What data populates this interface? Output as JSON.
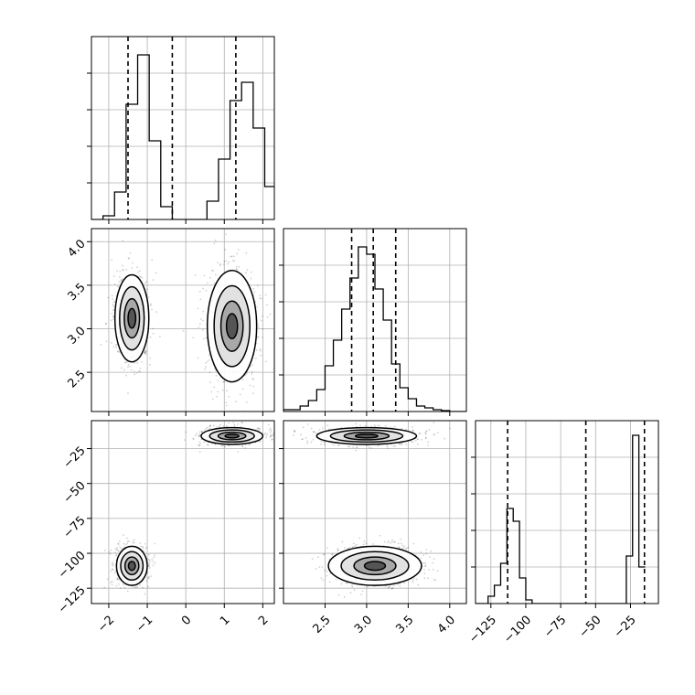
{
  "chart_data": [
    {
      "type": "histogram",
      "panel": "p0_0",
      "x_range": [
        -2.45,
        2.3
      ],
      "x_ticks": [
        -2,
        -1,
        0,
        1,
        2
      ],
      "x_tick_labels": [
        "-2",
        "-1",
        "0",
        "1",
        "2"
      ],
      "y_range": [
        0,
        1
      ],
      "quantile_lines": [
        -1.5,
        -0.35,
        1.3
      ],
      "bins": {
        "start": -2.45,
        "width": 0.3,
        "heights": [
          0.0,
          0.02,
          0.15,
          0.63,
          0.9,
          0.43,
          0.07,
          0.0,
          0.0,
          0.0,
          0.1,
          0.33,
          0.65,
          0.75,
          0.5,
          0.18,
          0.04
        ]
      },
      "grid": true
    },
    {
      "type": "histogram",
      "panel": "p1_1",
      "x_range": [
        2.0,
        4.2
      ],
      "x_ticks": [
        2.5,
        3.0,
        3.5,
        4.0
      ],
      "x_tick_labels": [
        "2.5",
        "3.0",
        "3.5",
        "4.0"
      ],
      "y_range": [
        0,
        1
      ],
      "quantile_lines": [
        2.82,
        3.08,
        3.35
      ],
      "bins": {
        "start": 2.0,
        "width": 0.1,
        "heights": [
          0.01,
          0.01,
          0.03,
          0.06,
          0.12,
          0.25,
          0.39,
          0.56,
          0.73,
          0.9,
          0.86,
          0.67,
          0.5,
          0.26,
          0.13,
          0.07,
          0.03,
          0.02,
          0.01,
          0.005,
          0.0,
          0.0
        ]
      },
      "grid": true
    },
    {
      "type": "histogram",
      "panel": "p2_2",
      "x_range": [
        -136,
        -5
      ],
      "x_ticks": [
        -125,
        -100,
        -75,
        -50,
        -25
      ],
      "x_tick_labels": [
        "−125",
        "−100",
        "−75",
        "−50",
        "−25"
      ],
      "y_range": [
        0,
        1
      ],
      "quantile_lines": [
        -113,
        -57,
        -15
      ],
      "bins": {
        "start": -136,
        "width": 4.5,
        "heights": [
          0.0,
          0.0,
          0.04,
          0.1,
          0.22,
          0.52,
          0.45,
          0.14,
          0.02,
          0.0,
          0.0,
          0.0,
          0.0,
          0.0,
          0.0,
          0.0,
          0.0,
          0.0,
          0.0,
          0.0,
          0.0,
          0.0,
          0.0,
          0.0,
          0.26,
          0.92,
          0.2
        ]
      },
      "grid": true
    },
    {
      "type": "contour-scatter",
      "panel": "p1_0",
      "x_range": [
        -2.45,
        2.3
      ],
      "y_range": [
        2.05,
        4.15
      ],
      "x_ticks": [
        -2,
        -1,
        0,
        1,
        2
      ],
      "y_ticks": [
        2.5,
        3.0,
        3.5,
        4.0
      ],
      "y_tick_labels": [
        "2.5",
        "3.0",
        "3.5",
        "4.0"
      ],
      "clusters": [
        {
          "center": [
            -1.4,
            3.12
          ],
          "sd": [
            0.22,
            0.25
          ]
        },
        {
          "center": [
            1.2,
            3.03
          ],
          "sd": [
            0.32,
            0.32
          ]
        }
      ],
      "grid": true
    },
    {
      "type": "contour-scatter",
      "panel": "p2_0",
      "x_range": [
        -2.45,
        2.3
      ],
      "y_range": [
        -136,
        -5
      ],
      "x_ticks": [
        -2,
        -1,
        0,
        1,
        2
      ],
      "x_tick_labels": [
        "−2",
        "−1",
        "0",
        "1",
        "2"
      ],
      "y_ticks": [
        -125,
        -100,
        -75,
        -50,
        -25
      ],
      "y_tick_labels": [
        "−125",
        "−100",
        "−75",
        "−50",
        "−25"
      ],
      "clusters": [
        {
          "center": [
            -1.4,
            -109
          ],
          "sd": [
            0.2,
            7
          ]
        },
        {
          "center": [
            1.2,
            -16
          ],
          "sd": [
            0.4,
            3
          ]
        }
      ],
      "grid": true
    },
    {
      "type": "contour-scatter",
      "panel": "p2_1",
      "x_range": [
        2.0,
        4.2
      ],
      "y_range": [
        -136,
        -5
      ],
      "x_ticks": [
        2.5,
        3.0,
        3.5,
        4.0
      ],
      "x_tick_labels": [
        "2.5",
        "3.0",
        "3.5",
        "4.0"
      ],
      "y_ticks": [
        -125,
        -100,
        -75,
        -50,
        -25
      ],
      "clusters": [
        {
          "center": [
            3.0,
            -16
          ],
          "sd": [
            0.3,
            3
          ]
        },
        {
          "center": [
            3.1,
            -109
          ],
          "sd": [
            0.28,
            7
          ]
        }
      ],
      "grid": true
    }
  ]
}
